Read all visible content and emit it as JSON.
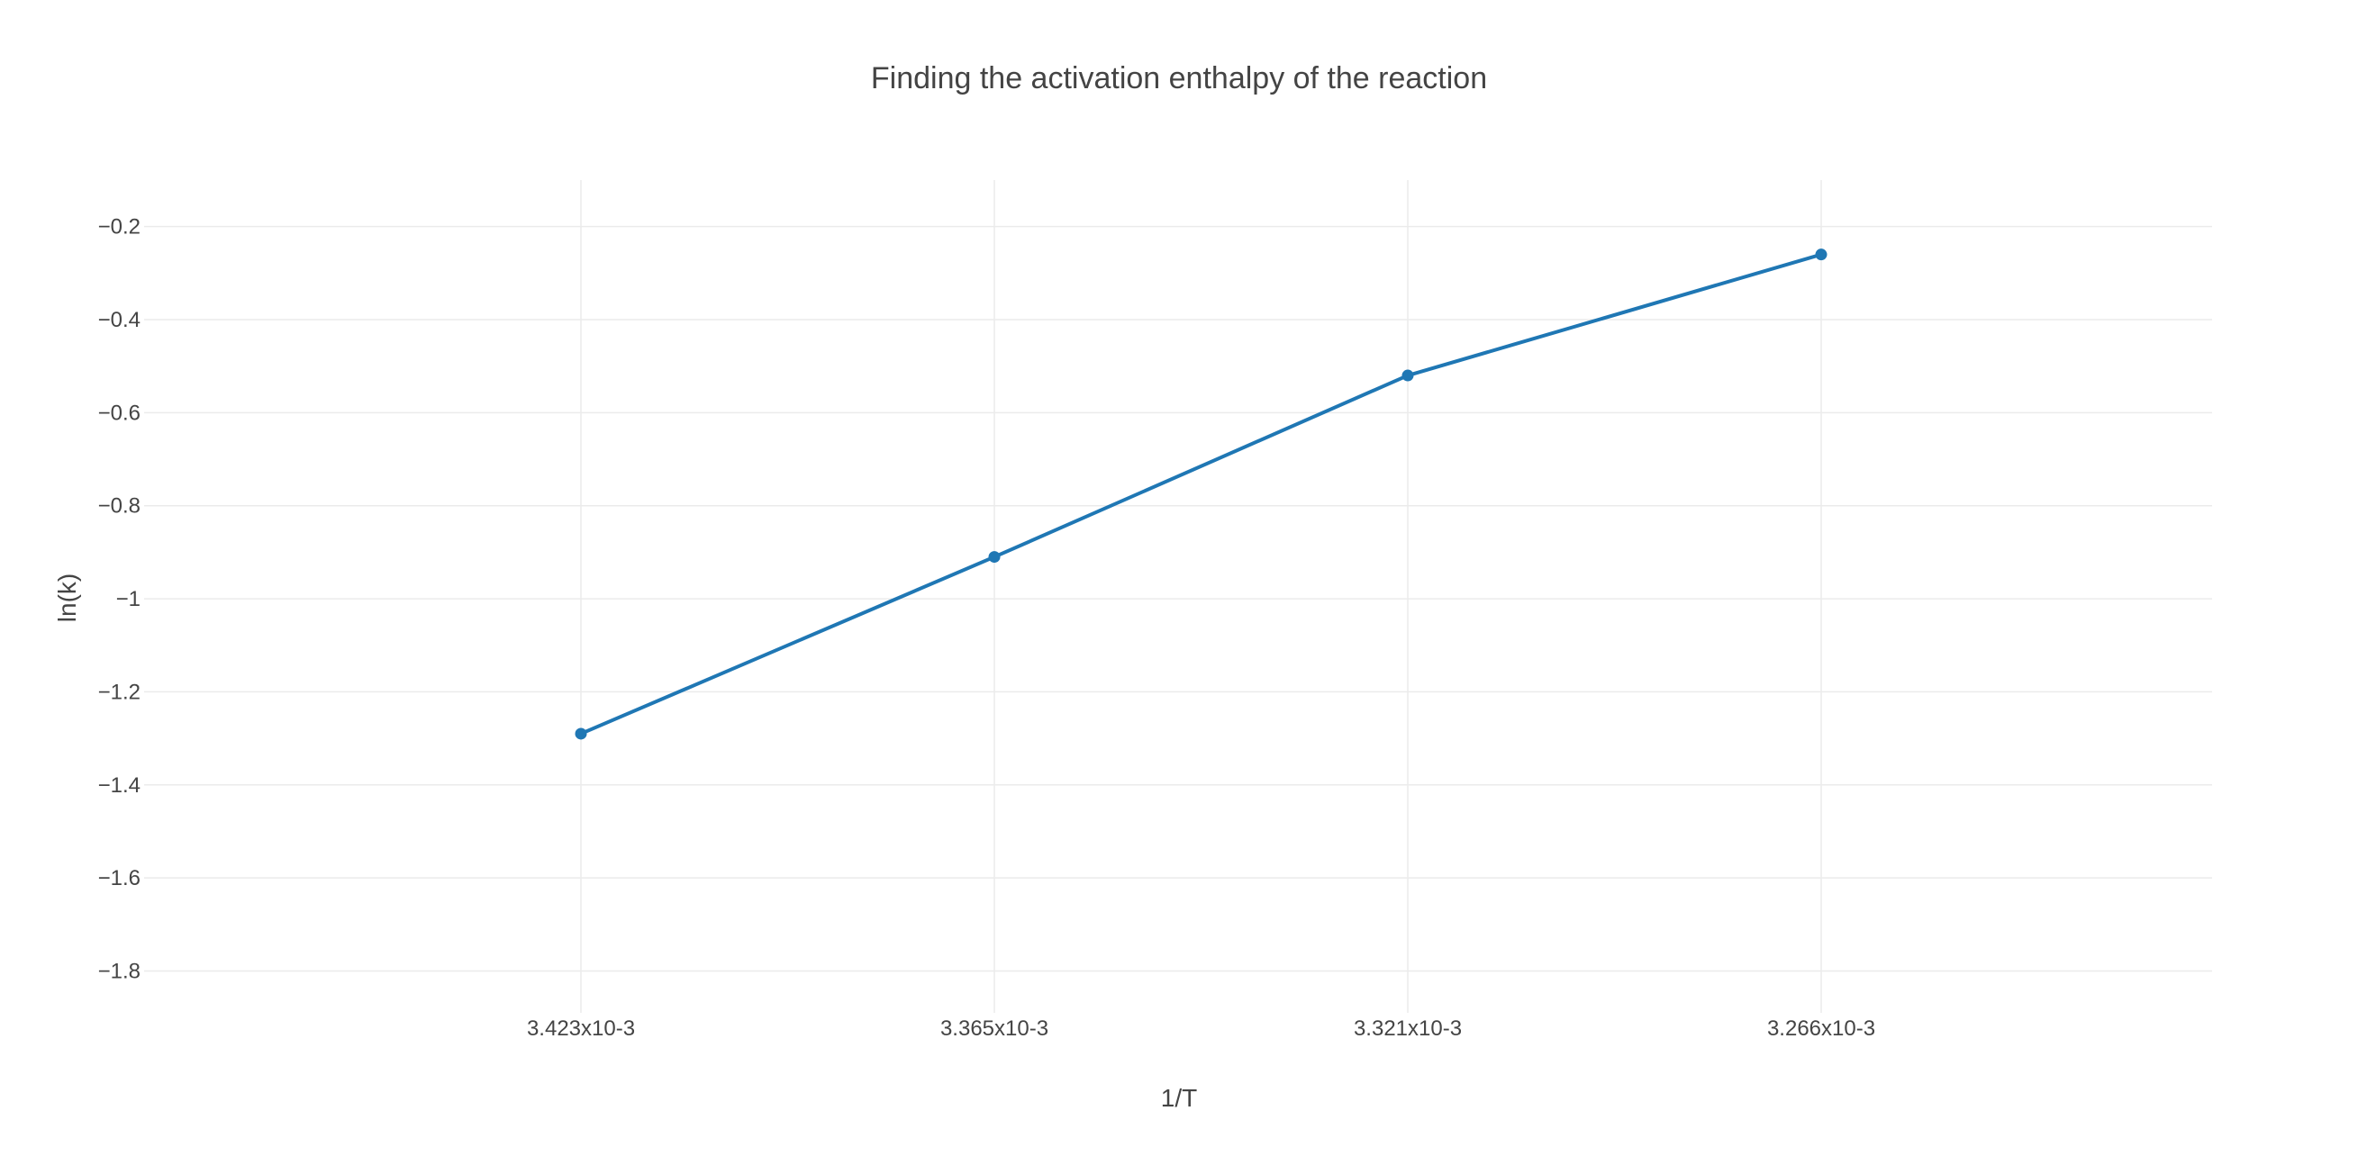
{
  "chart_data": {
    "type": "line",
    "title": "Finding the activation enthalpy of the reaction",
    "xlabel": "1/T",
    "ylabel": "ln(k)",
    "categories": [
      "3.423x10-3",
      "3.365x10-3",
      "3.321x10-3",
      "3.266x10-3"
    ],
    "series": [
      {
        "values": [
          -1.29,
          -0.91,
          -0.52,
          -0.26
        ],
        "color": "#1f77b4"
      }
    ],
    "ylim": [
      -1.89,
      -0.1
    ],
    "yticks": [
      -1.8,
      -1.6,
      -1.4,
      -1.2,
      -1,
      -0.8,
      -0.6,
      -0.4,
      -0.2
    ],
    "ytick_labels": [
      "−1.8",
      "−1.6",
      "−1.4",
      "−1.2",
      "−1",
      "−0.8",
      "−0.6",
      "−0.4",
      "−0.2"
    ],
    "grid": true,
    "legend": "none"
  }
}
